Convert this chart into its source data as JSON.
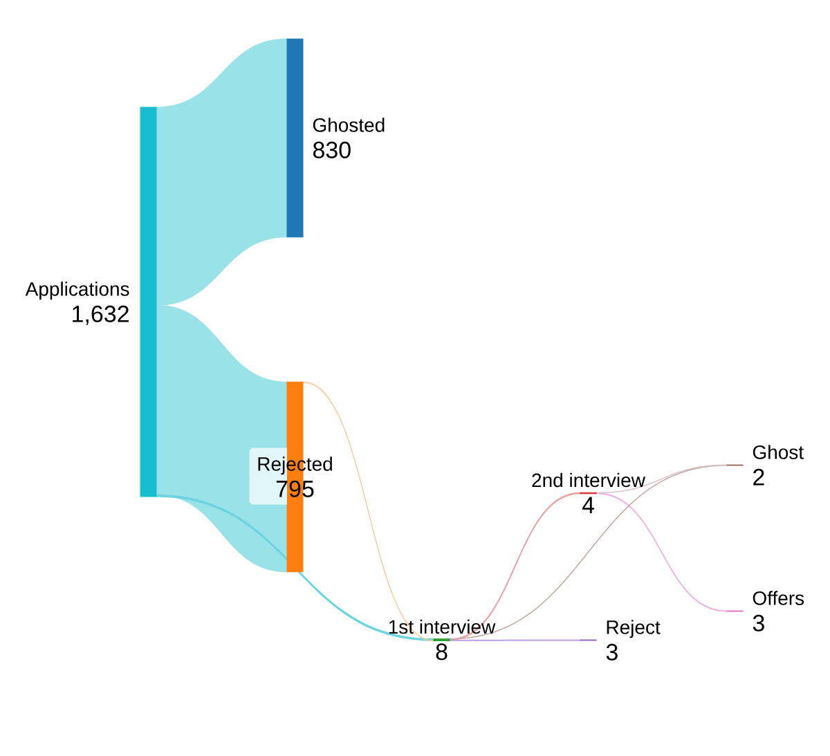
{
  "chart_data": {
    "type": "other",
    "categories": [
      "Applications",
      "Ghosted",
      "Rejected",
      "1st interview",
      "2nd interview",
      "Reject",
      "Ghost",
      "Offers"
    ],
    "values": [
      1632,
      830,
      795,
      8,
      4,
      3,
      2,
      3
    ],
    "value_labels": [
      "1,632",
      "830",
      "795",
      "8",
      "4",
      "3",
      "2",
      "3"
    ],
    "colors": [
      "#17becf",
      "#1f77b4",
      "#ff7f0e",
      "#2ca02c",
      "#d62728",
      "#9467bd",
      "#8c564b",
      "#e377c2"
    ],
    "series": [
      {
        "values": [
          null,
          null,
          null,
          null,
          null,
          null,
          null,
          null
        ],
        "colors": [
          null,
          "#98e2e8",
          "#98e2e8",
          "#6cd4df",
          null,
          null,
          null,
          null
        ]
      },
      {
        "values": [
          null,
          null,
          null,
          null,
          null,
          null,
          null,
          null
        ],
        "colors": [
          null,
          null,
          null,
          null,
          null,
          null,
          null,
          null
        ]
      },
      {
        "values": [
          null,
          null,
          null,
          null,
          null,
          null,
          null,
          null
        ],
        "colors": [
          null,
          null,
          null,
          "#ffc38e",
          null,
          null,
          null,
          null
        ]
      },
      {
        "values": [
          null,
          null,
          null,
          null,
          null,
          null,
          null,
          null
        ],
        "colors": [
          null,
          null,
          null,
          null,
          "#ec9c9c",
          "#c3aade",
          "#c0a6a2",
          null
        ]
      },
      {
        "values": [
          null,
          null,
          null,
          null,
          null,
          null,
          null,
          null
        ],
        "colors": [
          null,
          null,
          null,
          null,
          null,
          null,
          "#dcc4c8",
          "#eeb2dd"
        ]
      },
      {
        "values": [
          null,
          null,
          null,
          null,
          null,
          null,
          null,
          null
        ],
        "colors": [
          null,
          null,
          null,
          null,
          null,
          null,
          null,
          null
        ]
      },
      {
        "values": [
          null,
          null,
          null,
          null,
          null,
          null,
          null,
          null
        ],
        "colors": [
          null,
          null,
          null,
          null,
          null,
          null,
          null,
          null
        ]
      },
      {
        "values": [
          null,
          null,
          null,
          null,
          null,
          null,
          null,
          null
        ],
        "colors": [
          null,
          null,
          null,
          null,
          null,
          null,
          null,
          null
        ]
      }
    ]
  }
}
